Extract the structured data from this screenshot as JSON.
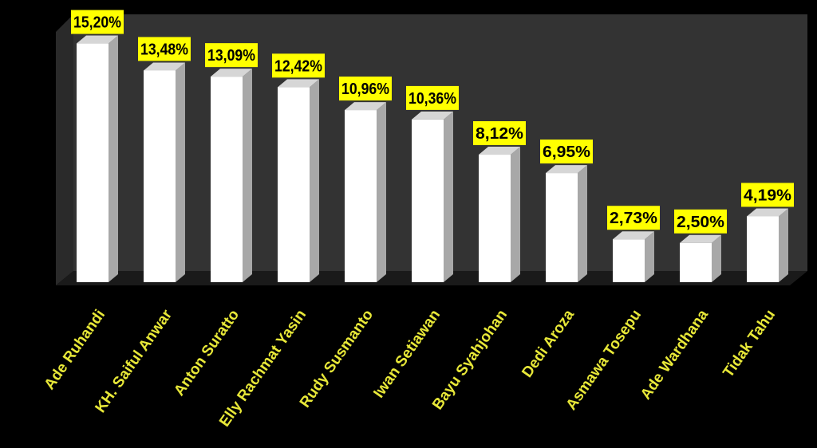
{
  "chart_data": {
    "type": "bar",
    "categories": [
      "Ade Ruhandi",
      "KH. Saiful Anwar",
      "Anton Suratto",
      "Elly Rachmat Yasin",
      "Rudy Susmanto",
      "Iwan Setiawan",
      "Bayu Syahjohan",
      "Dedi Aroza",
      "Asmawa Tosepu",
      "Ade Wardhana",
      "Tidak Tahu"
    ],
    "values": [
      15.2,
      13.48,
      13.09,
      12.42,
      10.96,
      10.36,
      8.12,
      6.95,
      2.73,
      2.5,
      4.19
    ],
    "data_labels": [
      "15,20%",
      "13,48%",
      "13,09%",
      "12,42%",
      "10,96%",
      "10,36%",
      "8,12%",
      "6,95%",
      "2,73%",
      "2,50%",
      "4,19%"
    ],
    "ylim": [
      0,
      17
    ],
    "grid": false,
    "legend": "none",
    "colors": {
      "background": "#000000",
      "plot_wall": "#333333",
      "floor": "#1a1a1a",
      "bar_front": "#ffffff",
      "bar_side": "#a8a8a8",
      "bar_top": "#d6d6d6",
      "label_box": "#ffff00",
      "label_text": "#000000",
      "category_text": "#e8e838"
    }
  }
}
